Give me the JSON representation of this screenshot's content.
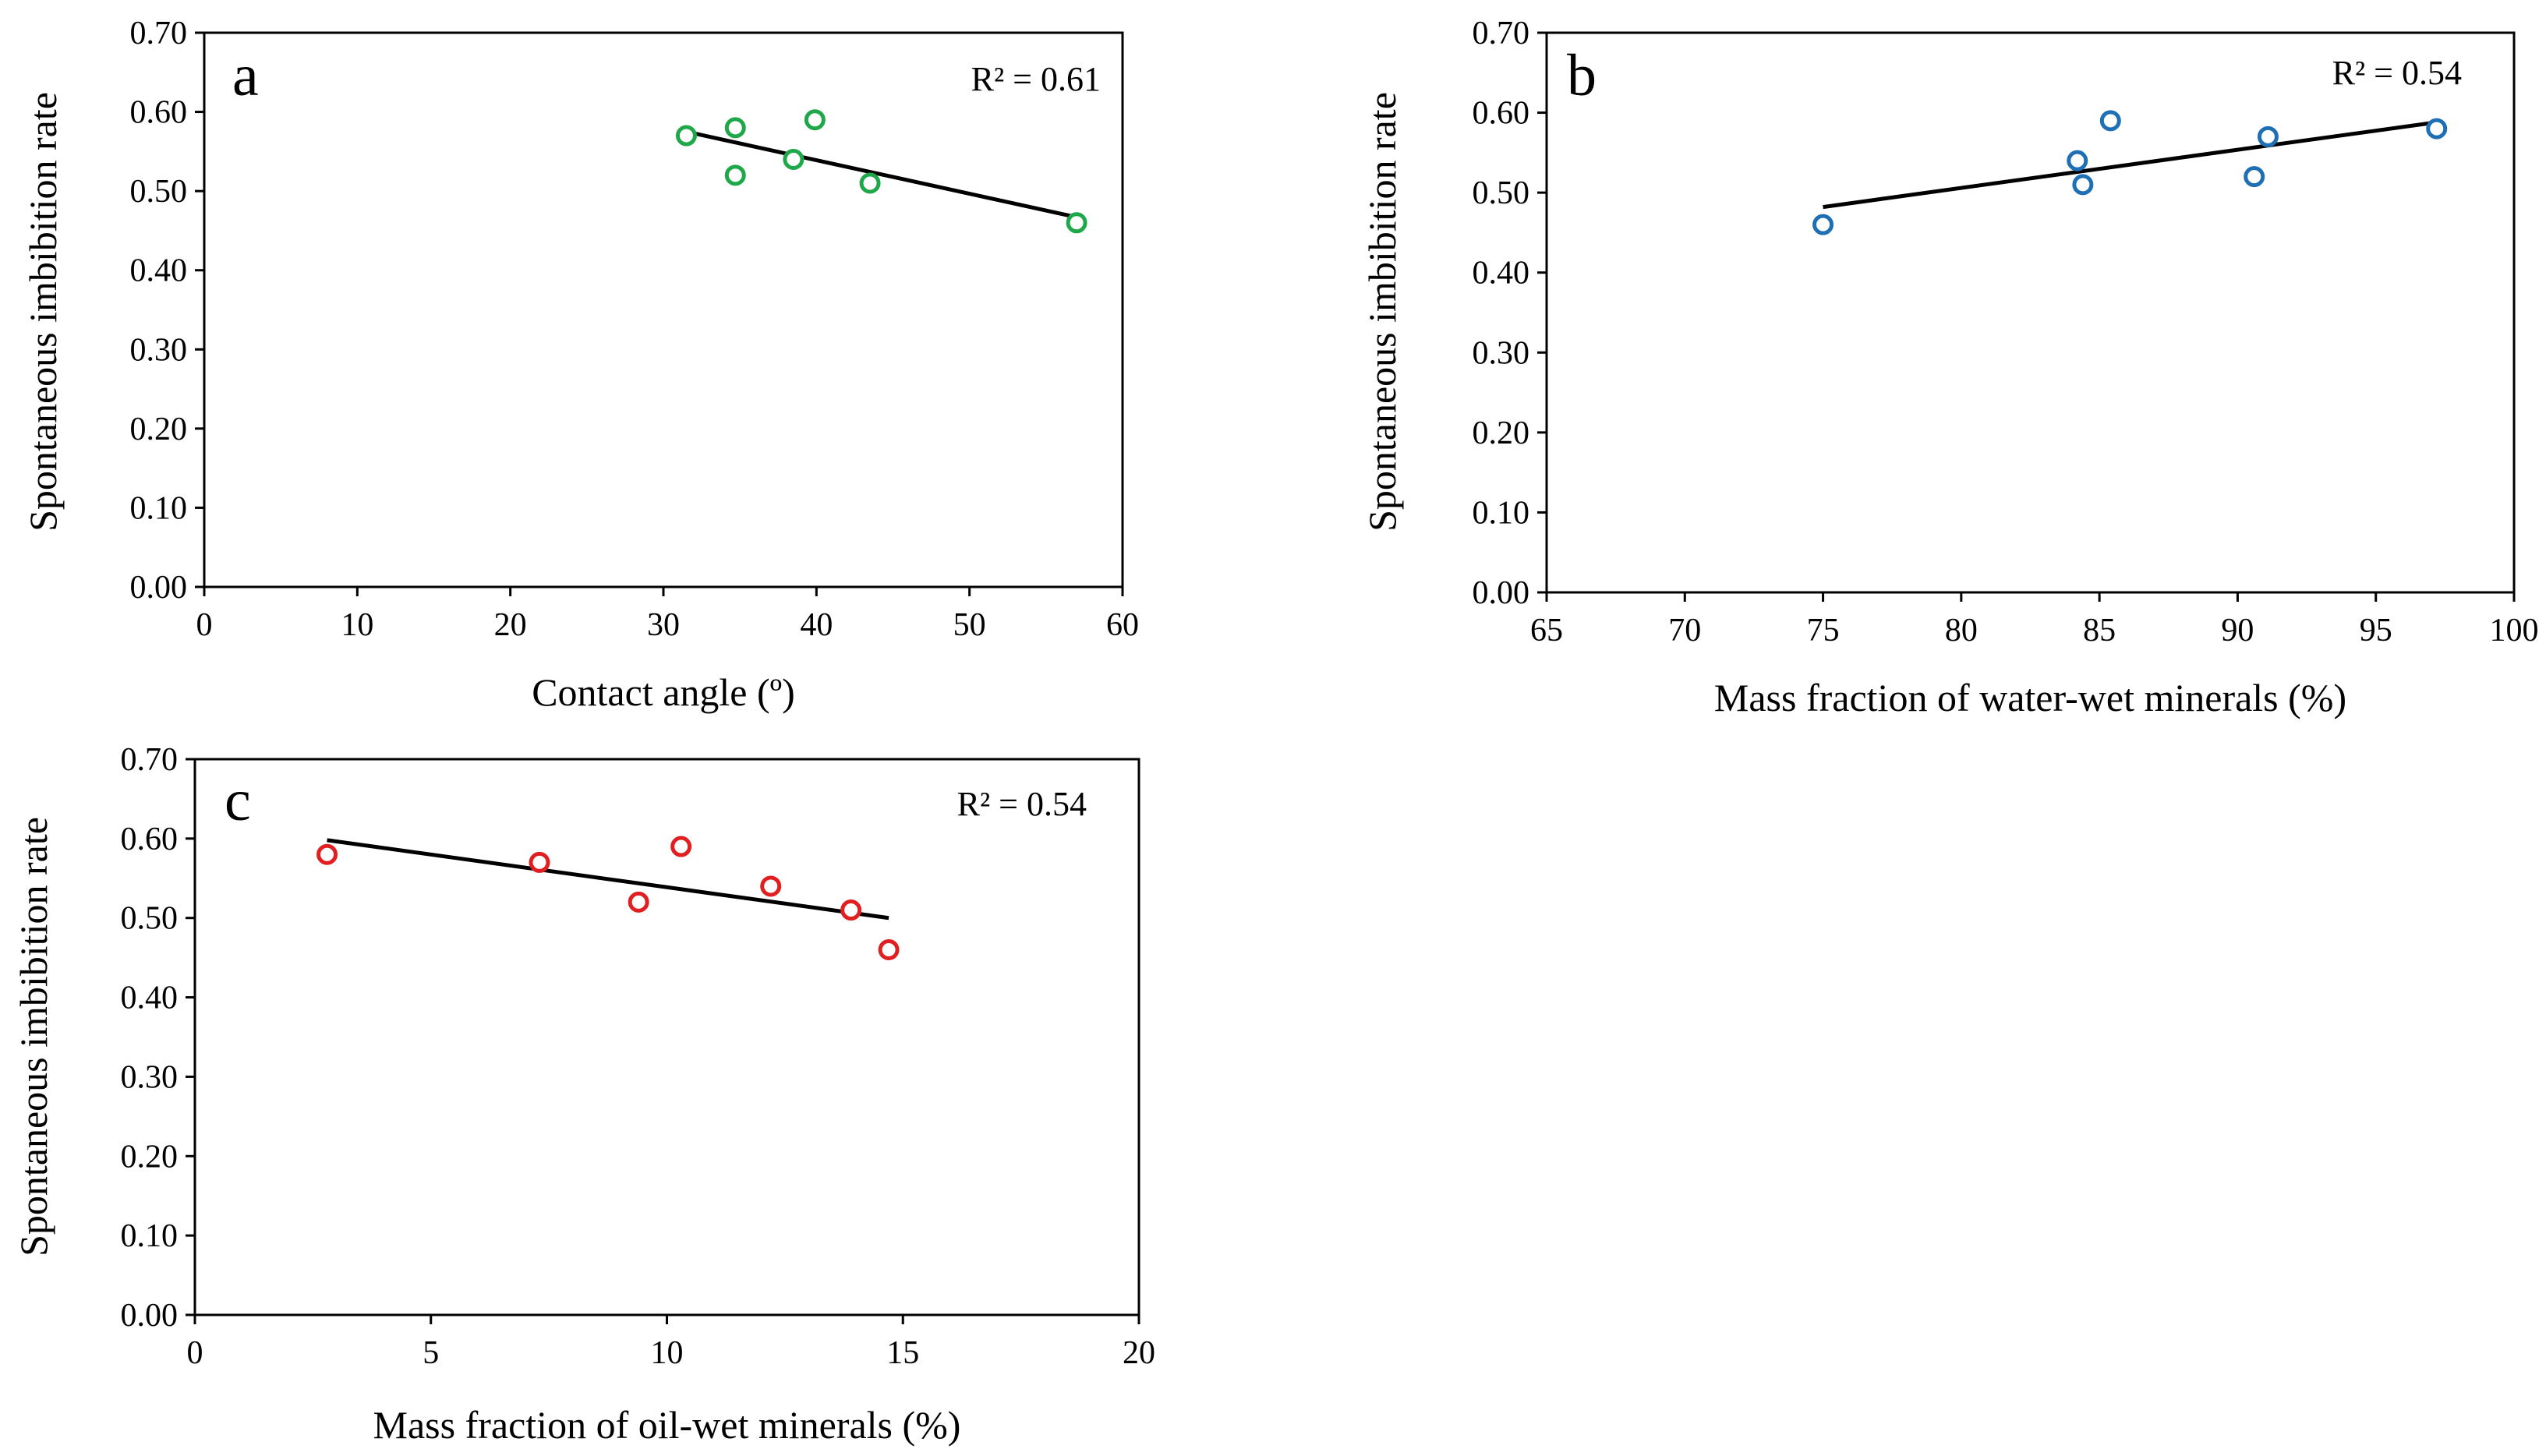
{
  "chart_data": [
    {
      "type": "scatter",
      "panel": "a",
      "xlabel": "Contact angle (º)",
      "ylabel": "Spontaneous imbibition rate",
      "xlim": [
        0,
        60
      ],
      "ylim": [
        0,
        0.7
      ],
      "x_ticks": [
        0,
        10,
        20,
        30,
        40,
        50,
        60
      ],
      "y_ticks": [
        "0.00",
        "0.10",
        "0.20",
        "0.30",
        "0.40",
        "0.50",
        "0.60",
        "0.70"
      ],
      "marker_color": "#1fa84a",
      "points": [
        {
          "x": 31.5,
          "y": 0.57
        },
        {
          "x": 34.7,
          "y": 0.58
        },
        {
          "x": 34.7,
          "y": 0.52
        },
        {
          "x": 38.5,
          "y": 0.54
        },
        {
          "x": 39.9,
          "y": 0.59
        },
        {
          "x": 43.5,
          "y": 0.51
        },
        {
          "x": 57.0,
          "y": 0.46
        }
      ],
      "trendline": {
        "x": [
          31.5,
          57.0
        ],
        "y": [
          0.575,
          0.467
        ]
      },
      "annotation": "R² = 0.61"
    },
    {
      "type": "scatter",
      "panel": "b",
      "xlabel": "Mass fraction of water-wet minerals (%)",
      "ylabel": "Spontaneous imbibition rate",
      "xlim": [
        65,
        100
      ],
      "ylim": [
        0,
        0.7
      ],
      "x_ticks": [
        65,
        70,
        75,
        80,
        85,
        90,
        95,
        100
      ],
      "y_ticks": [
        "0.00",
        "0.10",
        "0.20",
        "0.30",
        "0.40",
        "0.50",
        "0.60",
        "0.70"
      ],
      "marker_color": "#1f6fb5",
      "points": [
        {
          "x": 75.0,
          "y": 0.46
        },
        {
          "x": 84.2,
          "y": 0.54
        },
        {
          "x": 84.4,
          "y": 0.51
        },
        {
          "x": 85.4,
          "y": 0.59
        },
        {
          "x": 90.6,
          "y": 0.52
        },
        {
          "x": 91.1,
          "y": 0.57
        },
        {
          "x": 97.2,
          "y": 0.58
        }
      ],
      "trendline": {
        "x": [
          75.0,
          97.2
        ],
        "y": [
          0.482,
          0.588
        ]
      },
      "annotation": "R² = 0.54"
    },
    {
      "type": "scatter",
      "panel": "c",
      "xlabel": "Mass fraction of oil-wet minerals (%)",
      "ylabel": "Spontaneous imbibition rate",
      "xlim": [
        0,
        20
      ],
      "ylim": [
        0,
        0.7
      ],
      "x_ticks": [
        0,
        5,
        10,
        15,
        20
      ],
      "y_ticks": [
        "0.00",
        "0.10",
        "0.20",
        "0.30",
        "0.40",
        "0.50",
        "0.60",
        "0.70"
      ],
      "marker_color": "#e02020",
      "points": [
        {
          "x": 2.8,
          "y": 0.58
        },
        {
          "x": 7.3,
          "y": 0.57
        },
        {
          "x": 9.4,
          "y": 0.52
        },
        {
          "x": 10.3,
          "y": 0.59
        },
        {
          "x": 12.2,
          "y": 0.54
        },
        {
          "x": 13.9,
          "y": 0.51
        },
        {
          "x": 14.7,
          "y": 0.46
        }
      ],
      "trendline": {
        "x": [
          2.8,
          14.7
        ],
        "y": [
          0.598,
          0.5
        ]
      },
      "annotation": "R² = 0.54"
    }
  ]
}
